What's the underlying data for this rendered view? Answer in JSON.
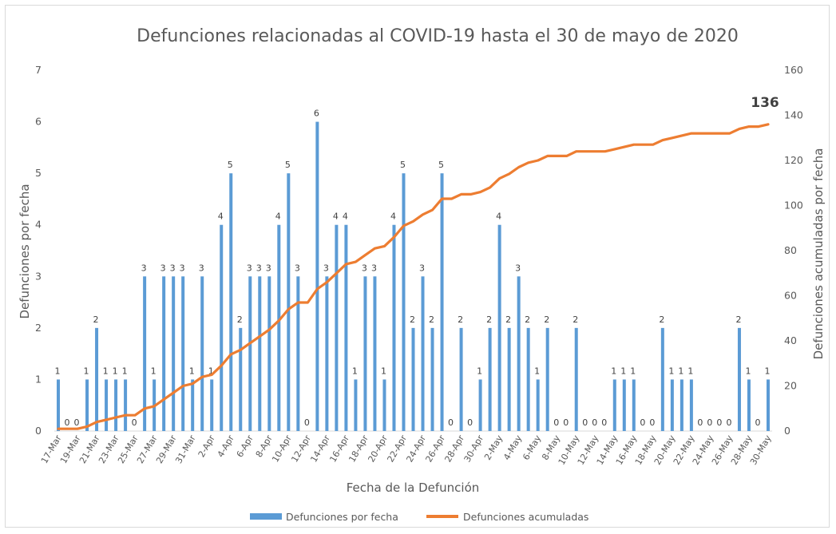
{
  "chart_data": {
    "type": "bar",
    "title": "Defunciones relacionadas al COVID-19 hasta el 30 de mayo de 2020",
    "xlabel": "Fecha de la Defunción",
    "ylabel": "Defunciones por fecha",
    "y2label": "Defunciones acumuladas por fecha",
    "ylim": [
      0,
      7
    ],
    "y2lim": [
      0,
      160
    ],
    "yticks": [
      0,
      1,
      2,
      3,
      4,
      5,
      6,
      7
    ],
    "y2ticks": [
      0,
      20,
      40,
      60,
      80,
      100,
      120,
      140,
      160
    ],
    "grid": false,
    "legend_position": "bottom",
    "end_label": "136",
    "categories": [
      "17-Mar",
      "18-Mar",
      "19-Mar",
      "20-Mar",
      "21-Mar",
      "22-Mar",
      "23-Mar",
      "24-Mar",
      "25-Mar",
      "26-Mar",
      "27-Mar",
      "28-Mar",
      "29-Mar",
      "30-Mar",
      "31-Mar",
      "1-Apr",
      "2-Apr",
      "3-Apr",
      "4-Apr",
      "5-Apr",
      "6-Apr",
      "7-Apr",
      "8-Apr",
      "9-Apr",
      "10-Apr",
      "11-Apr",
      "12-Apr",
      "13-Apr",
      "14-Apr",
      "15-Apr",
      "16-Apr",
      "17-Apr",
      "18-Apr",
      "19-Apr",
      "20-Apr",
      "21-Apr",
      "22-Apr",
      "23-Apr",
      "24-Apr",
      "25-Apr",
      "26-Apr",
      "27-Apr",
      "28-Apr",
      "29-Apr",
      "30-Apr",
      "1-May",
      "2-May",
      "3-May",
      "4-May",
      "5-May",
      "6-May",
      "7-May",
      "8-May",
      "9-May",
      "10-May",
      "11-May",
      "12-May",
      "13-May",
      "14-May",
      "15-May",
      "16-May",
      "17-May",
      "18-May",
      "19-May",
      "20-May",
      "21-May",
      "22-May",
      "23-May",
      "24-May",
      "25-May",
      "26-May",
      "27-May",
      "28-May",
      "29-May",
      "30-May"
    ],
    "series": [
      {
        "name": "Defunciones por fecha",
        "type": "bar",
        "axis": "left",
        "color": "#5b9bd5",
        "values": [
          1,
          0,
          0,
          1,
          2,
          1,
          1,
          1,
          0,
          3,
          1,
          3,
          3,
          3,
          1,
          3,
          1,
          4,
          5,
          2,
          3,
          3,
          3,
          4,
          5,
          3,
          0,
          6,
          3,
          4,
          4,
          1,
          3,
          3,
          1,
          4,
          5,
          2,
          3,
          2,
          5,
          0,
          2,
          0,
          1,
          2,
          4,
          2,
          3,
          2,
          1,
          2,
          0,
          0,
          2,
          0,
          0,
          0,
          1,
          1,
          1,
          0,
          0,
          2,
          1,
          1,
          1,
          0,
          0,
          0,
          0,
          2,
          1,
          0,
          1
        ]
      },
      {
        "name": "Defunciones acumuladas",
        "type": "line",
        "axis": "right",
        "color": "#ed7d31",
        "values": [
          1,
          1,
          1,
          2,
          4,
          5,
          6,
          7,
          7,
          10,
          11,
          14,
          17,
          20,
          21,
          24,
          25,
          29,
          34,
          36,
          39,
          42,
          45,
          49,
          54,
          57,
          57,
          63,
          66,
          70,
          74,
          75,
          78,
          81,
          82,
          86,
          91,
          93,
          96,
          98,
          103,
          103,
          105,
          105,
          106,
          108,
          112,
          114,
          117,
          119,
          120,
          122,
          122,
          122,
          124,
          124,
          124,
          124,
          125,
          126,
          127,
          127,
          127,
          129,
          130,
          131,
          132,
          132,
          132,
          132,
          132,
          134,
          135,
          135,
          136
        ]
      }
    ]
  }
}
